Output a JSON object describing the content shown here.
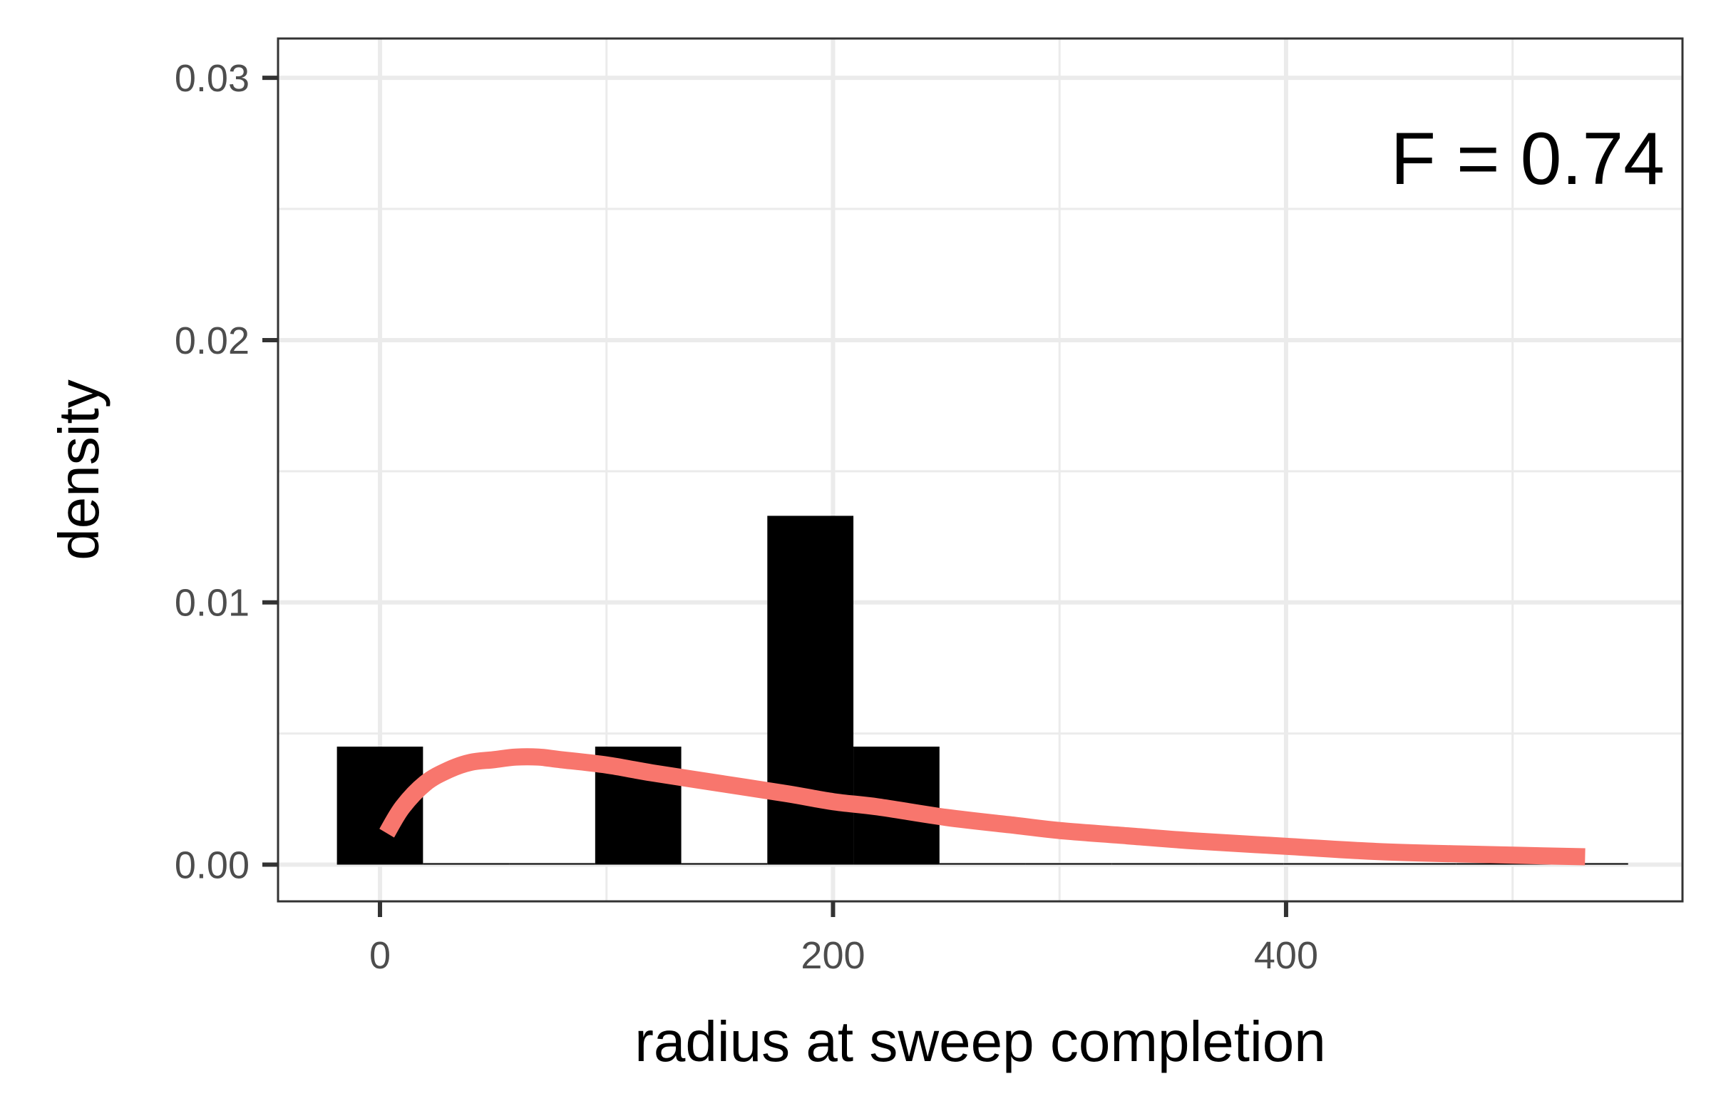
{
  "chart_data": {
    "type": "bar",
    "title": "",
    "xlabel": "radius at sweep completion",
    "ylabel": "density",
    "annotation": "F = 0.74",
    "xlim": [
      -45,
      575
    ],
    "ylim": [
      -0.0014,
      0.0315
    ],
    "x_ticks": [
      0,
      200,
      400
    ],
    "x_tick_labels": [
      "0",
      "200",
      "400"
    ],
    "y_ticks": [
      0,
      0.01,
      0.02,
      0.03
    ],
    "y_tick_labels": [
      "0.00",
      "0.01",
      "0.02",
      "0.03"
    ],
    "grid": true,
    "bar_color": "#000000",
    "curve_color": "#F8766D",
    "bins": [
      {
        "x0": -19,
        "x1": 19,
        "density": 0.0045
      },
      {
        "x0": 19,
        "x1": 57,
        "density": 0
      },
      {
        "x0": 57,
        "x1": 95,
        "density": 0
      },
      {
        "x0": 95,
        "x1": 133,
        "density": 0.0045
      },
      {
        "x0": 133,
        "x1": 171,
        "density": 0
      },
      {
        "x0": 171,
        "x1": 209,
        "density": 0.0133
      },
      {
        "x0": 209,
        "x1": 247,
        "density": 0.0045
      },
      {
        "x0": 247,
        "x1": 285,
        "density": 0
      },
      {
        "x0": 285,
        "x1": 323,
        "density": 0
      },
      {
        "x0": 323,
        "x1": 361,
        "density": 0
      },
      {
        "x0": 361,
        "x1": 399,
        "density": 0
      },
      {
        "x0": 399,
        "x1": 437,
        "density": 0
      },
      {
        "x0": 437,
        "x1": 475,
        "density": 0
      },
      {
        "x0": 475,
        "x1": 513,
        "density": 0
      },
      {
        "x0": 513,
        "x1": 551,
        "density": 0
      }
    ],
    "curve": {
      "x": [
        3,
        10,
        20,
        30,
        40,
        50,
        60,
        70,
        80,
        100,
        120,
        150,
        180,
        200,
        220,
        250,
        280,
        300,
        330,
        360,
        400,
        440,
        480,
        532
      ],
      "y": [
        0.0012,
        0.0022,
        0.0031,
        0.0036,
        0.0039,
        0.004,
        0.0041,
        0.0041,
        0.004,
        0.0038,
        0.0035,
        0.0031,
        0.0027,
        0.0024,
        0.0022,
        0.0018,
        0.0015,
        0.0013,
        0.0011,
        0.0009,
        0.0007,
        0.0005,
        0.0004,
        0.0003
      ]
    }
  }
}
